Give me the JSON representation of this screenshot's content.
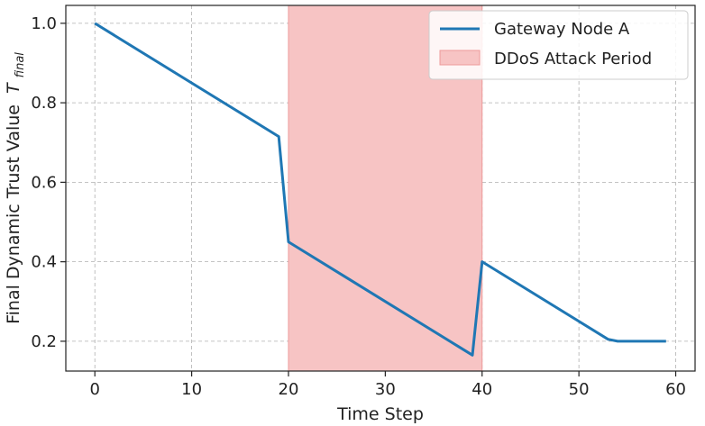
{
  "chart_data": {
    "type": "line",
    "xlabel": "Time Step",
    "ylabel": "Final Dynamic Trust Value",
    "ylabel_symbol": "T",
    "ylabel_subscript": "final",
    "xlim": [
      -3,
      62
    ],
    "ylim": [
      0.125,
      1.045
    ],
    "xticks": [
      0,
      10,
      20,
      30,
      40,
      50,
      60
    ],
    "xtick_labels": [
      "0",
      "10",
      "20",
      "30",
      "40",
      "50",
      "60"
    ],
    "yticks": [
      0.2,
      0.4,
      0.6,
      0.8,
      1.0
    ],
    "ytick_labels": [
      "0.2",
      "0.4",
      "0.6",
      "0.8",
      "1.0"
    ],
    "grid": true,
    "legend_position": "top-right",
    "series": [
      {
        "name": "Gateway Node A",
        "color": "#1f77b4",
        "x": [
          0,
          19,
          20,
          39,
          40,
          53,
          54,
          59
        ],
        "y": [
          1.0,
          0.715,
          0.45,
          0.165,
          0.4,
          0.205,
          0.2,
          0.2
        ]
      }
    ],
    "shaded_regions": [
      {
        "name": "DDoS Attack Period",
        "x_start": 20,
        "x_end": 40,
        "color": "#f7c4c4"
      }
    ]
  }
}
